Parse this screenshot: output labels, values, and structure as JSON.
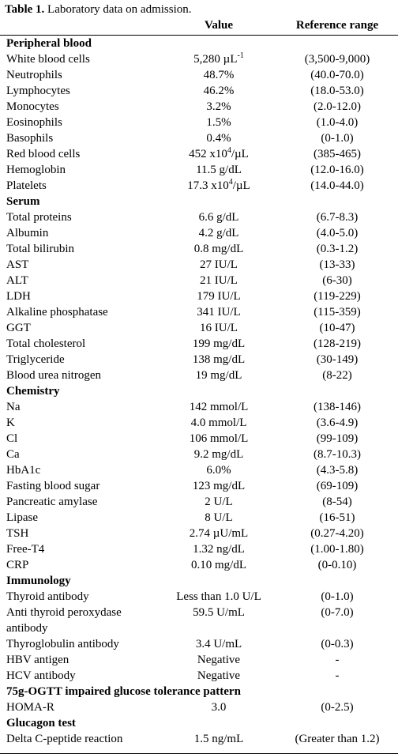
{
  "caption": {
    "label": "Table 1.",
    "text": "Laboratory data on admission."
  },
  "table": {
    "header": {
      "value": "Value",
      "range": "Reference range"
    },
    "sections": [
      {
        "title": "Peripheral blood",
        "rows": [
          {
            "item": "White blood cells",
            "value": {
              "pre": "5,280 µL",
              "sup": "-1"
            },
            "range": "(3,500-9,000)"
          },
          {
            "item": "Neutrophils",
            "value": "48.7%",
            "range": "(40.0-70.0)"
          },
          {
            "item": "Lymphocytes",
            "value": "46.2%",
            "range": "(18.0-53.0)"
          },
          {
            "item": "Monocytes",
            "value": "3.2%",
            "range": "(2.0-12.0)"
          },
          {
            "item": "Eosinophils",
            "value": "1.5%",
            "range": "(1.0-4.0)"
          },
          {
            "item": "Basophils",
            "value": "0.4%",
            "range": "(0-1.0)"
          },
          {
            "item": "Red blood cells",
            "value": {
              "pre": "452 x10",
              "sup": "4",
              "post": "/µL"
            },
            "range": "(385-465)"
          },
          {
            "item": "Hemoglobin",
            "value": "11.5 g/dL",
            "range": "(12.0-16.0)"
          },
          {
            "item": "Platelets",
            "value": {
              "pre": "17.3 x10",
              "sup": "4",
              "post": "/µL"
            },
            "range": "(14.0-44.0)"
          }
        ]
      },
      {
        "title": "Serum",
        "rows": [
          {
            "item": "Total proteins",
            "value": "6.6 g/dL",
            "range": "(6.7-8.3)"
          },
          {
            "item": "Albumin",
            "value": "4.2 g/dL",
            "range": "(4.0-5.0)"
          },
          {
            "item": "Total bilirubin",
            "value": "0.8 mg/dL",
            "range": "(0.3-1.2)"
          },
          {
            "item": "AST",
            "value": "27 IU/L",
            "range": "(13-33)"
          },
          {
            "item": "ALT",
            "value": "21 IU/L",
            "range": "(6-30)"
          },
          {
            "item": "LDH",
            "value": "179 IU/L",
            "range": "(119-229)"
          },
          {
            "item": "Alkaline phosphatase",
            "value": "341 IU/L",
            "range": "(115-359)"
          },
          {
            "item": "GGT",
            "value": "16 IU/L",
            "range": "(10-47)"
          },
          {
            "item": "Total cholesterol",
            "value": "199 mg/dL",
            "range": "(128-219)"
          },
          {
            "item": "Triglyceride",
            "value": "138 mg/dL",
            "range": "(30-149)"
          },
          {
            "item": "Blood urea nitrogen",
            "value": "19 mg/dL",
            "range": "(8-22)"
          }
        ]
      },
      {
        "title": "Chemistry",
        "rows": [
          {
            "item": "Na",
            "value": "142 mmol/L",
            "range": "(138-146)"
          },
          {
            "item": "K",
            "value": "4.0 mmol/L",
            "range": "(3.6-4.9)"
          },
          {
            "item": "Cl",
            "value": "106 mmol/L",
            "range": "(99-109)"
          },
          {
            "item": "Ca",
            "value": "9.2 mg/dL",
            "range": "(8.7-10.3)"
          },
          {
            "item": "HbA1c",
            "value": "6.0%",
            "range": "(4.3-5.8)"
          },
          {
            "item": "Fasting blood sugar",
            "value": "123 mg/dL",
            "range": "(69-109)"
          },
          {
            "item": "Pancreatic amylase",
            "value": "2 U/L",
            "range": "(8-54)"
          },
          {
            "item": "Lipase",
            "value": "8 U/L",
            "range": "(16-51)"
          },
          {
            "item": "TSH",
            "value": "2.74 µU/mL",
            "range": "(0.27-4.20)"
          },
          {
            "item": "Free-T4",
            "value": "1.32 ng/dL",
            "range": "(1.00-1.80)"
          },
          {
            "item": "CRP",
            "value": "0.10 mg/dL",
            "range": "(0-0.10)"
          }
        ]
      },
      {
        "title": "Immunology",
        "rows": [
          {
            "item": "Thyroid antibody",
            "value": "Less than 1.0 U/L",
            "range": "(0-1.0)"
          },
          {
            "item": "Anti thyroid peroxydase antibody",
            "value": "59.5 U/mL",
            "range": "(0-7.0)"
          },
          {
            "item": "Thyroglobulin antibody",
            "value": "3.4 U/mL",
            "range": "(0-0.3)"
          },
          {
            "item": "HBV antigen",
            "value": "Negative",
            "range": "-"
          },
          {
            "item": "HCV antibody",
            "value": "Negative",
            "range": "-"
          }
        ]
      },
      {
        "title": "75g-OGTT impaired glucose tolerance pattern",
        "rows": [
          {
            "item": "HOMA-R",
            "value": "3.0",
            "range": "(0-2.5)"
          }
        ]
      },
      {
        "title": "Glucagon test",
        "rows": [
          {
            "item": "Delta C-peptide reaction",
            "value": "1.5 ng/mL",
            "range": "(Greater than 1.2)"
          }
        ]
      }
    ]
  }
}
